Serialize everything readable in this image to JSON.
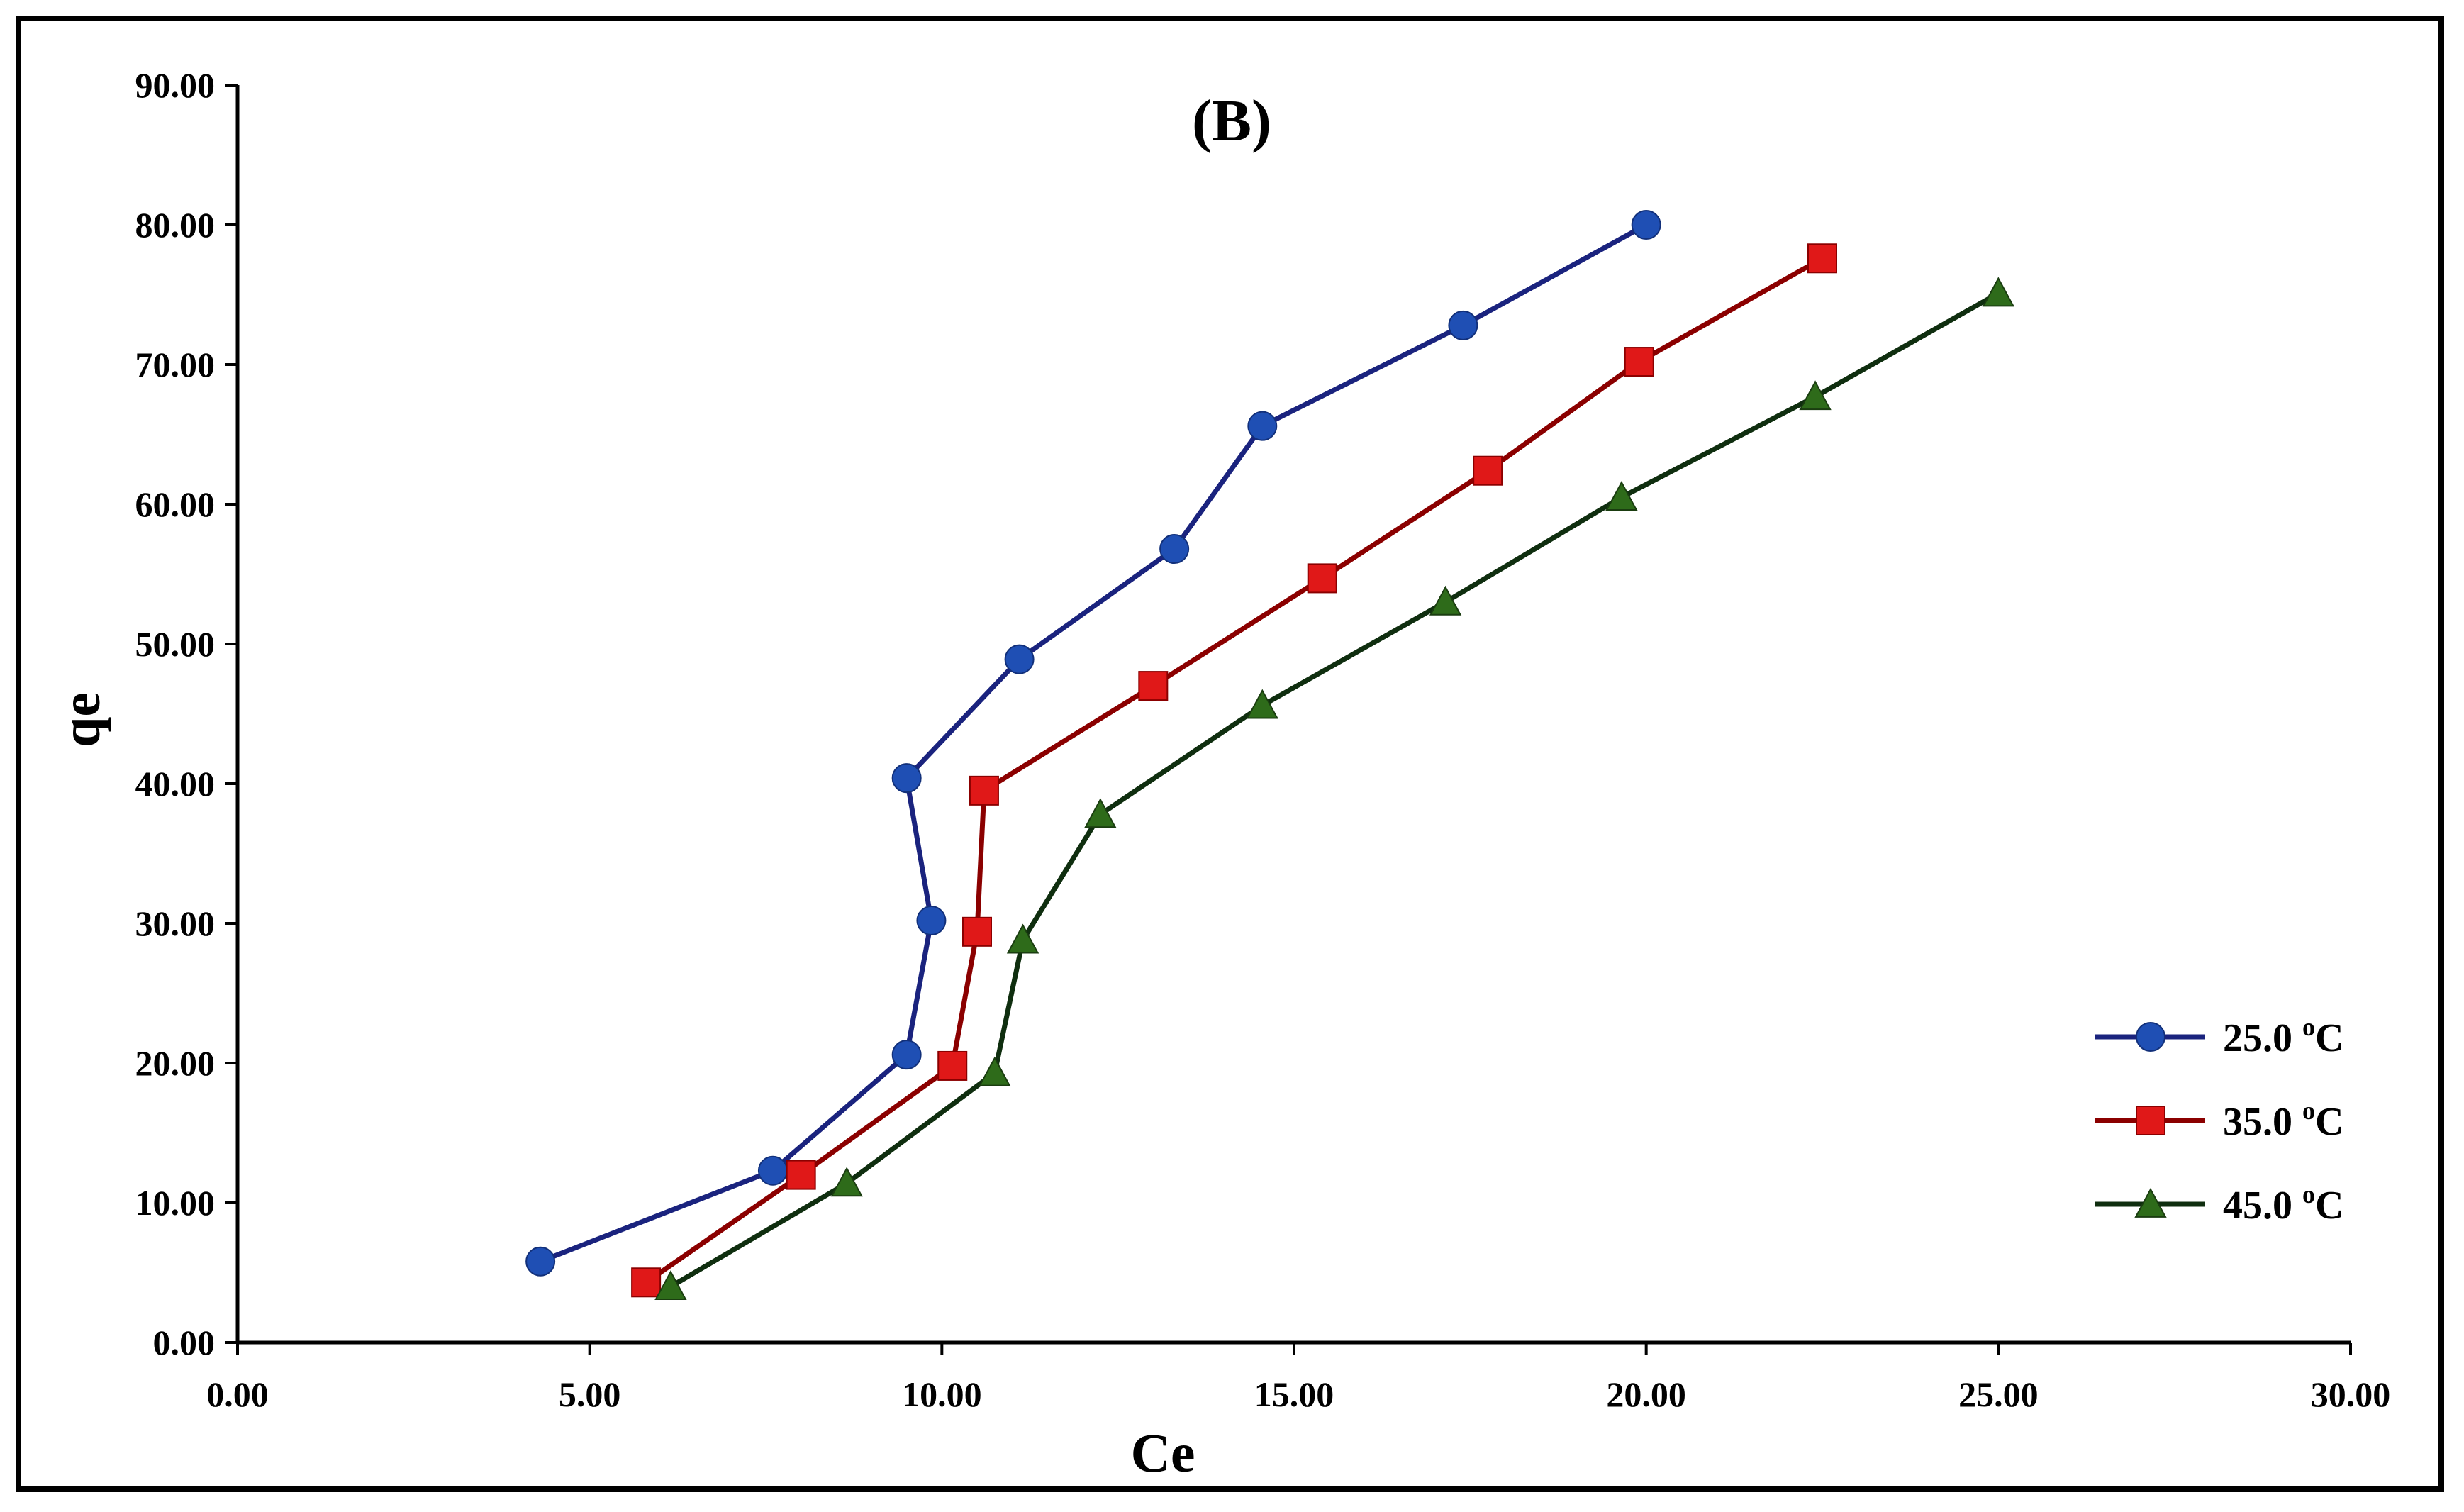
{
  "chart_data": {
    "type": "line",
    "title": "(B)",
    "xlabel": "Ce",
    "ylabel": "qe",
    "xlim": [
      0,
      30
    ],
    "ylim": [
      0,
      90
    ],
    "xticks": [
      0,
      5,
      10,
      15,
      20,
      25,
      30
    ],
    "yticks": [
      0,
      10,
      20,
      30,
      40,
      50,
      60,
      70,
      80,
      90
    ],
    "xtick_labels": [
      "0.00",
      "5.00",
      "10.00",
      "15.00",
      "20.00",
      "25.00",
      "30.00"
    ],
    "ytick_labels": [
      "0.00",
      "10.00",
      "20.00",
      "30.00",
      "40.00",
      "50.00",
      "60.00",
      "70.00",
      "80.00",
      "90.00"
    ],
    "grid": false,
    "legend_position": "bottom-right",
    "series": [
      {
        "name": "25.0 °C",
        "label_value": "25.0",
        "label_unit": "C",
        "label_sup": "o",
        "marker": "circle",
        "marker_color": "#1f4fb4",
        "line_color": "#1a237e",
        "x": [
          4.3,
          7.6,
          9.5,
          9.85,
          9.5,
          11.1,
          13.3,
          14.55,
          17.4,
          20.0
        ],
        "y": [
          5.8,
          12.3,
          20.6,
          30.2,
          40.4,
          48.9,
          56.8,
          65.6,
          72.8,
          80.0
        ]
      },
      {
        "name": "35.0 °C",
        "label_value": "35.0",
        "label_unit": "C",
        "label_sup": "o",
        "marker": "square",
        "marker_color": "#e01818",
        "line_color": "#8b0000",
        "x": [
          5.8,
          8.0,
          10.15,
          10.5,
          10.6,
          13.0,
          15.4,
          17.75,
          19.9,
          22.5
        ],
        "y": [
          4.3,
          12.0,
          19.8,
          29.4,
          39.5,
          47.0,
          54.7,
          62.4,
          70.2,
          77.6
        ]
      },
      {
        "name": "45.0 °C",
        "label_value": "45.0",
        "label_unit": "C",
        "label_sup": "o",
        "marker": "triangle",
        "marker_color": "#2e6b1a",
        "line_color": "#0f2e0f",
        "x": [
          6.15,
          8.65,
          10.75,
          11.15,
          12.25,
          14.55,
          17.15,
          19.65,
          22.4,
          25.0
        ],
        "y": [
          4.0,
          11.4,
          19.3,
          28.8,
          37.8,
          45.6,
          53.0,
          60.5,
          67.7,
          75.1
        ]
      }
    ]
  }
}
